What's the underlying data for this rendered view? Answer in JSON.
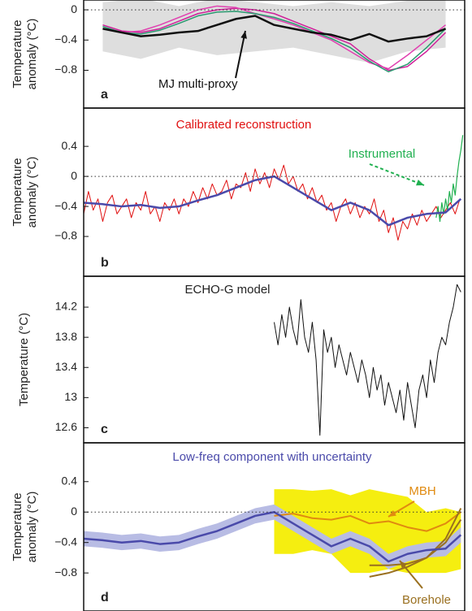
{
  "chart_data": [
    {
      "type": "line",
      "letter": "a",
      "ylabel": [
        "Temperature",
        "anomaly (°C)"
      ],
      "annotations": [
        {
          "text": "MJ multi-proxy",
          "color": "#111111"
        }
      ],
      "xlim": [
        0,
        2000
      ],
      "ylim": [
        -1.3,
        0.13
      ],
      "hline": 0,
      "yticks": [
        0,
        {
          "value": -0.4,
          "label": "−0.4"
        },
        {
          "value": -0.8,
          "label": "−0.8"
        }
      ],
      "series": [
        {
          "type": "band",
          "color": "#dedede",
          "x": [
            100,
            300,
            500,
            700,
            900,
            1100,
            1300,
            1500,
            1700,
            1900
          ],
          "lower": [
            -0.55,
            -0.65,
            -0.5,
            -0.6,
            -0.55,
            -0.5,
            -0.6,
            -0.7,
            -0.55,
            -0.5
          ],
          "upper": [
            0.1,
            0.15,
            0.05,
            0.15,
            0.1,
            0.05,
            0.1,
            0.05,
            0.12,
            0.15
          ]
        },
        {
          "type": "line",
          "color": "#d0209a",
          "x": [
            100,
            200,
            300,
            400,
            500,
            600,
            700,
            800,
            900,
            1000,
            1100,
            1200,
            1300,
            1400,
            1500,
            1600,
            1700,
            1800,
            1900
          ],
          "values": [
            -0.2,
            -0.28,
            -0.3,
            -0.25,
            -0.15,
            -0.05,
            0.0,
            0.02,
            0.0,
            -0.05,
            -0.15,
            -0.25,
            -0.35,
            -0.45,
            -0.65,
            -0.8,
            -0.75,
            -0.55,
            -0.3
          ]
        },
        {
          "type": "line",
          "color": "#e040b0",
          "x": [
            100,
            200,
            300,
            400,
            500,
            600,
            700,
            800,
            900,
            1000,
            1100,
            1200,
            1300,
            1400,
            1500,
            1600,
            1700,
            1800,
            1900
          ],
          "values": [
            -0.25,
            -0.3,
            -0.28,
            -0.2,
            -0.1,
            0.0,
            0.05,
            0.03,
            -0.05,
            -0.12,
            -0.2,
            -0.3,
            -0.4,
            -0.55,
            -0.7,
            -0.78,
            -0.6,
            -0.4,
            -0.2
          ]
        },
        {
          "type": "line",
          "color": "#2a9a70",
          "x": [
            100,
            200,
            300,
            400,
            500,
            600,
            700,
            800,
            900,
            1000,
            1100,
            1200,
            1300,
            1400,
            1500,
            1600,
            1700,
            1800,
            1900
          ],
          "values": [
            -0.22,
            -0.3,
            -0.32,
            -0.27,
            -0.18,
            -0.08,
            -0.03,
            -0.02,
            -0.05,
            -0.1,
            -0.18,
            -0.28,
            -0.38,
            -0.5,
            -0.68,
            -0.82,
            -0.72,
            -0.5,
            -0.25
          ]
        },
        {
          "type": "line",
          "color": "#111111",
          "width": 2.5,
          "x": [
            100,
            200,
            300,
            400,
            500,
            600,
            700,
            800,
            900,
            1000,
            1100,
            1200,
            1300,
            1400,
            1500,
            1600,
            1700,
            1800,
            1900
          ],
          "values": [
            -0.25,
            -0.3,
            -0.35,
            -0.33,
            -0.3,
            -0.28,
            -0.2,
            -0.12,
            -0.08,
            -0.2,
            -0.25,
            -0.3,
            -0.33,
            -0.4,
            -0.32,
            -0.42,
            -0.38,
            -0.35,
            -0.25
          ]
        }
      ]
    },
    {
      "type": "line",
      "letter": "b",
      "ylabel": [
        "Temperature",
        "anomaly (°C)"
      ],
      "annotations": [
        {
          "text": "Calibrated reconstruction",
          "color": "#e01010"
        },
        {
          "text": "Instrumental",
          "color": "#20b050"
        }
      ],
      "xlim": [
        0,
        2000
      ],
      "ylim": [
        -1.33,
        0.91
      ],
      "hline": 0,
      "yticks": [
        0.4,
        0,
        {
          "value": -0.4,
          "label": "−0.4"
        },
        {
          "value": -0.8,
          "label": "−0.8"
        }
      ],
      "series": [
        {
          "type": "line",
          "color": "#e01010",
          "width": 1,
          "x": [
            0,
            25,
            50,
            75,
            100,
            125,
            150,
            175,
            200,
            225,
            250,
            275,
            300,
            325,
            350,
            375,
            400,
            425,
            450,
            475,
            500,
            525,
            550,
            575,
            600,
            625,
            650,
            675,
            700,
            725,
            750,
            775,
            800,
            825,
            850,
            875,
            900,
            925,
            950,
            975,
            1000,
            1025,
            1050,
            1075,
            1100,
            1125,
            1150,
            1175,
            1200,
            1225,
            1250,
            1275,
            1300,
            1325,
            1350,
            1375,
            1400,
            1425,
            1450,
            1475,
            1500,
            1525,
            1550,
            1575,
            1600,
            1625,
            1650,
            1675,
            1700,
            1725,
            1750,
            1775,
            1800,
            1825,
            1850,
            1875,
            1900,
            1925,
            1950,
            1975
          ],
          "values": [
            -0.5,
            -0.2,
            -0.45,
            -0.3,
            -0.6,
            -0.35,
            -0.25,
            -0.5,
            -0.4,
            -0.3,
            -0.55,
            -0.35,
            -0.45,
            -0.2,
            -0.5,
            -0.4,
            -0.6,
            -0.35,
            -0.45,
            -0.3,
            -0.5,
            -0.3,
            -0.4,
            -0.2,
            -0.35,
            -0.15,
            -0.3,
            -0.1,
            -0.25,
            -0.2,
            -0.05,
            -0.3,
            -0.1,
            -0.15,
            0.05,
            -0.2,
            0.1,
            -0.1,
            0.05,
            -0.15,
            0.1,
            -0.05,
            0.15,
            -0.1,
            0.0,
            -0.2,
            -0.1,
            -0.3,
            -0.15,
            -0.35,
            -0.25,
            -0.45,
            -0.35,
            -0.6,
            -0.4,
            -0.3,
            -0.5,
            -0.35,
            -0.55,
            -0.4,
            -0.5,
            -0.3,
            -0.6,
            -0.45,
            -0.75,
            -0.55,
            -0.85,
            -0.6,
            -0.7,
            -0.5,
            -0.65,
            -0.45,
            -0.6,
            -0.5,
            -0.4,
            -0.55,
            -0.45,
            -0.35,
            -0.5,
            -0.3
          ]
        },
        {
          "type": "line",
          "color": "#20b050",
          "width": 1.2,
          "x": [
            1850,
            1860,
            1870,
            1880,
            1890,
            1900,
            1910,
            1920,
            1930,
            1940,
            1950,
            1960,
            1970,
            1980,
            1990
          ],
          "values": [
            -0.55,
            -0.4,
            -0.6,
            -0.35,
            -0.5,
            -0.3,
            -0.45,
            -0.2,
            -0.35,
            -0.1,
            -0.25,
            0.0,
            0.2,
            0.35,
            0.55
          ]
        },
        {
          "type": "line",
          "color": "#4a4aaa",
          "width": 2.5,
          "x": [
            0,
            100,
            200,
            300,
            400,
            500,
            600,
            700,
            800,
            900,
            1000,
            1100,
            1200,
            1300,
            1400,
            1500,
            1600,
            1700,
            1800,
            1900,
            1980
          ],
          "values": [
            -0.35,
            -0.37,
            -0.4,
            -0.38,
            -0.42,
            -0.4,
            -0.32,
            -0.25,
            -0.15,
            -0.05,
            0.0,
            -0.15,
            -0.3,
            -0.45,
            -0.35,
            -0.45,
            -0.65,
            -0.55,
            -0.5,
            -0.48,
            -0.3
          ]
        }
      ]
    },
    {
      "type": "line",
      "letter": "c",
      "ylabel": [
        "Temperature (°C)"
      ],
      "annotations": [
        {
          "text": "ECHO-G model",
          "color": "#222222"
        }
      ],
      "xlim": [
        0,
        2000
      ],
      "ylim": [
        12.4,
        14.61
      ],
      "yticks": [
        14.2,
        13.8,
        13.4,
        13,
        12.6
      ],
      "series": [
        {
          "type": "line",
          "color": "#111111",
          "width": 1,
          "x": [
            1000,
            1020,
            1040,
            1060,
            1080,
            1100,
            1120,
            1140,
            1160,
            1180,
            1200,
            1220,
            1240,
            1260,
            1280,
            1300,
            1320,
            1340,
            1360,
            1380,
            1400,
            1420,
            1440,
            1460,
            1480,
            1500,
            1520,
            1540,
            1560,
            1580,
            1600,
            1620,
            1640,
            1660,
            1680,
            1700,
            1720,
            1740,
            1760,
            1780,
            1800,
            1820,
            1840,
            1860,
            1880,
            1900,
            1920,
            1940,
            1960,
            1980
          ],
          "values": [
            14.0,
            13.7,
            14.1,
            13.8,
            14.2,
            13.9,
            13.7,
            14.3,
            13.8,
            13.6,
            14.0,
            13.5,
            12.5,
            13.9,
            13.6,
            13.8,
            13.4,
            13.7,
            13.5,
            13.3,
            13.6,
            13.4,
            13.2,
            13.5,
            13.3,
            13.0,
            13.4,
            13.1,
            13.3,
            12.9,
            13.2,
            13.0,
            12.8,
            13.1,
            12.7,
            13.2,
            12.9,
            12.6,
            13.1,
            13.3,
            13.0,
            13.5,
            13.2,
            13.6,
            13.8,
            13.7,
            14.0,
            14.2,
            14.5,
            14.4
          ]
        }
      ]
    },
    {
      "type": "line",
      "letter": "d",
      "ylabel": [
        "Temperature",
        "anomaly (°C)"
      ],
      "annotations": [
        {
          "text": "Low-freq component with uncertainty",
          "color": "#4a4aaa"
        },
        {
          "text": "MBH",
          "color": "#e08a10"
        },
        {
          "text": "Borehole",
          "color": "#9a7020"
        }
      ],
      "xlim": [
        0,
        2000
      ],
      "ylim": [
        -1.3,
        0.91
      ],
      "hline": 0,
      "yticks": [
        0.4,
        0,
        {
          "value": -0.4,
          "label": "−0.4"
        },
        {
          "value": -0.8,
          "label": "−0.8"
        }
      ],
      "series": [
        {
          "type": "band",
          "color": "#f5ee10",
          "x": [
            1000,
            1100,
            1200,
            1300,
            1400,
            1500,
            1600,
            1700,
            1800,
            1900,
            1980
          ],
          "lower": [
            -0.55,
            -0.55,
            -0.5,
            -0.55,
            -0.8,
            -0.8,
            -0.75,
            -0.8,
            -0.8,
            -0.8,
            -0.75
          ],
          "upper": [
            0.3,
            0.3,
            0.28,
            0.3,
            0.22,
            0.3,
            0.25,
            0.2,
            0.0,
            0.05,
            0.0
          ]
        },
        {
          "type": "band",
          "color": "#b8bce4",
          "x": [
            0,
            100,
            200,
            300,
            400,
            500,
            600,
            700,
            800,
            900,
            1000,
            1100,
            1200,
            1300,
            1400,
            1500,
            1600,
            1700,
            1800,
            1900,
            1980
          ],
          "lower": [
            -0.45,
            -0.47,
            -0.5,
            -0.48,
            -0.52,
            -0.5,
            -0.42,
            -0.35,
            -0.25,
            -0.15,
            -0.1,
            -0.25,
            -0.4,
            -0.55,
            -0.45,
            -0.55,
            -0.75,
            -0.65,
            -0.6,
            -0.58,
            -0.4
          ],
          "upper": [
            -0.25,
            -0.27,
            -0.3,
            -0.28,
            -0.32,
            -0.3,
            -0.22,
            -0.15,
            -0.05,
            0.05,
            0.1,
            -0.05,
            -0.2,
            -0.35,
            -0.25,
            -0.35,
            -0.55,
            -0.45,
            -0.4,
            -0.38,
            -0.2
          ]
        },
        {
          "type": "line",
          "color": "#e08a10",
          "width": 2,
          "x": [
            1000,
            1100,
            1200,
            1300,
            1400,
            1500,
            1600,
            1700,
            1800,
            1900,
            1980
          ],
          "values": [
            -0.05,
            -0.02,
            -0.08,
            -0.1,
            -0.05,
            -0.15,
            -0.12,
            -0.2,
            -0.25,
            -0.15,
            0.0
          ]
        },
        {
          "type": "line",
          "color": "#9a7020",
          "width": 2,
          "x": [
            1500,
            1600,
            1700,
            1800,
            1900,
            1980
          ],
          "values": [
            -0.85,
            -0.8,
            -0.72,
            -0.6,
            -0.35,
            0.05
          ]
        },
        {
          "type": "line",
          "color": "#9a7020",
          "width": 2,
          "x": [
            1500,
            1600,
            1700,
            1800,
            1900,
            1980
          ],
          "values": [
            -0.7,
            -0.7,
            -0.68,
            -0.6,
            -0.4,
            -0.1
          ]
        },
        {
          "type": "line",
          "color": "#4a4aaa",
          "width": 2.5,
          "x": [
            0,
            100,
            200,
            300,
            400,
            500,
            600,
            700,
            800,
            900,
            1000,
            1100,
            1200,
            1300,
            1400,
            1500,
            1600,
            1700,
            1800,
            1900,
            1980
          ],
          "values": [
            -0.35,
            -0.37,
            -0.4,
            -0.38,
            -0.42,
            -0.4,
            -0.32,
            -0.25,
            -0.15,
            -0.05,
            0.0,
            -0.15,
            -0.3,
            -0.45,
            -0.35,
            -0.45,
            -0.65,
            -0.55,
            -0.5,
            -0.48,
            -0.3
          ]
        }
      ]
    }
  ]
}
